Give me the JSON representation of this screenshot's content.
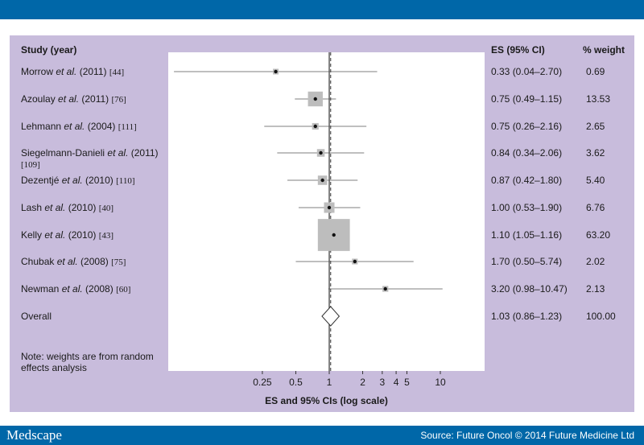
{
  "header": {
    "study_col": "Study (year)",
    "es_col": "ES (95% CI)",
    "weight_col": "% weight"
  },
  "note": "Note: weights are from random effects analysis",
  "footer": {
    "brand": "Medscape",
    "source": "Source: Future Oncol © 2014 Future Medicine Ltd"
  },
  "colors": {
    "bar": "#0067a8",
    "panel": "#c8bcdc",
    "box": "#bdbdbd"
  },
  "chart_data": {
    "type": "forest",
    "xlabel": "ES and 95% CIs (log scale)",
    "x_scale": "log",
    "xlim": [
      0.13,
      14
    ],
    "x_ticks": [
      0.25,
      0.5,
      1,
      2,
      3,
      4,
      5,
      10
    ],
    "x_tick_labels": [
      "0.25",
      "0.5",
      "1",
      "2",
      "3",
      "4",
      "5",
      "10"
    ],
    "reference_line": 1,
    "pooled_line": 1.03,
    "studies": [
      {
        "author": "Morrow",
        "etal": "et al.",
        "year": "(2011)",
        "ref": "[44]",
        "es": 0.33,
        "lo": 0.04,
        "hi": 2.7,
        "es_label": "0.33 (0.04–2.70)",
        "weight": 0.69,
        "weight_label": "0.69"
      },
      {
        "author": "Azoulay",
        "etal": "et al.",
        "year": "(2011)",
        "ref": "[76]",
        "es": 0.75,
        "lo": 0.49,
        "hi": 1.15,
        "es_label": "0.75 (0.49–1.15)",
        "weight": 13.53,
        "weight_label": "13.53"
      },
      {
        "author": "Lehmann",
        "etal": "et al.",
        "year": "(2004)",
        "ref": "[111]",
        "es": 0.75,
        "lo": 0.26,
        "hi": 2.16,
        "es_label": "0.75 (0.26–2.16)",
        "weight": 2.65,
        "weight_label": "2.65"
      },
      {
        "author": "Siegelmann-Danieli",
        "etal": "et al.",
        "year": "(2011)",
        "ref": "[109]",
        "es": 0.84,
        "lo": 0.34,
        "hi": 2.06,
        "es_label": "0.84 (0.34–2.06)",
        "weight": 3.62,
        "weight_label": "3.62"
      },
      {
        "author": "Dezentjé",
        "etal": "et al.",
        "year": "(2010)",
        "ref": "[110]",
        "es": 0.87,
        "lo": 0.42,
        "hi": 1.8,
        "es_label": "0.87 (0.42–1.80)",
        "weight": 5.4,
        "weight_label": "5.40"
      },
      {
        "author": "Lash",
        "etal": "et al.",
        "year": "(2010)",
        "ref": "[40]",
        "es": 1.0,
        "lo": 0.53,
        "hi": 1.9,
        "es_label": "1.00 (0.53–1.90)",
        "weight": 6.76,
        "weight_label": "6.76"
      },
      {
        "author": "Kelly",
        "etal": "et al.",
        "year": "(2010)",
        "ref": "[43]",
        "es": 1.1,
        "lo": 1.05,
        "hi": 1.16,
        "es_label": "1.10 (1.05–1.16)",
        "weight": 63.2,
        "weight_label": "63.20"
      },
      {
        "author": "Chubak",
        "etal": "et al.",
        "year": "(2008)",
        "ref": "[75]",
        "es": 1.7,
        "lo": 0.5,
        "hi": 5.74,
        "es_label": "1.70 (0.50–5.74)",
        "weight": 2.02,
        "weight_label": "2.02"
      },
      {
        "author": "Newman",
        "etal": "et al.",
        "year": "(2008)",
        "ref": "[60]",
        "es": 3.2,
        "lo": 0.98,
        "hi": 10.47,
        "es_label": "3.20 (0.98–10.47)",
        "weight": 2.13,
        "weight_label": "2.13"
      }
    ],
    "overall": {
      "label": "Overall",
      "es": 1.03,
      "lo": 0.86,
      "hi": 1.23,
      "es_label": "1.03 (0.86–1.23)",
      "weight_label": "100.00"
    }
  }
}
